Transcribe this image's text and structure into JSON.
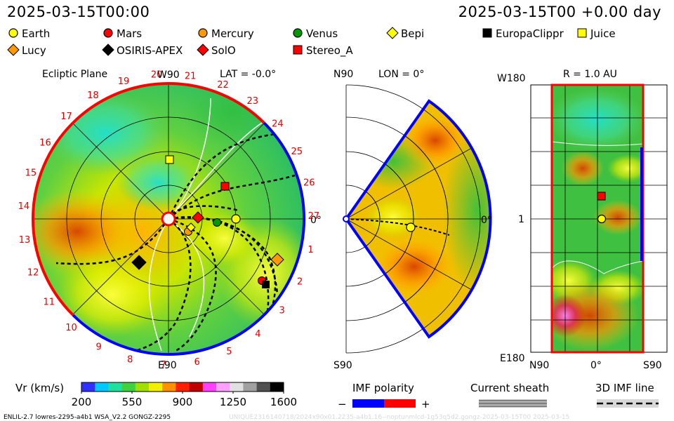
{
  "header": {
    "date_left": "2025-03-15T00:00",
    "date_right": "2025-03-15T00 +0.00 day"
  },
  "legend": [
    {
      "label": "Earth",
      "shape": "circle",
      "color": "#ffff00"
    },
    {
      "label": "Mars",
      "shape": "circle",
      "color": "#ff0000"
    },
    {
      "label": "Mercury",
      "shape": "circle",
      "color": "#ff9900"
    },
    {
      "label": "Venus",
      "shape": "circle",
      "color": "#009900"
    },
    {
      "label": "Bepi",
      "shape": "diamond",
      "color": "#ffff00"
    },
    {
      "label": "EuropaClippr",
      "shape": "square",
      "color": "#000000"
    },
    {
      "label": "Juice",
      "shape": "square",
      "color": "#ffff00"
    },
    {
      "label": "Lucy",
      "shape": "diamond",
      "color": "#ff9900"
    },
    {
      "label": "OSIRIS-APEX",
      "shape": "diamond",
      "color": "#000000"
    },
    {
      "label": "SolO",
      "shape": "diamond",
      "color": "#ff0000"
    },
    {
      "label": "Stereo_A",
      "shape": "square",
      "color": "#ff0000"
    }
  ],
  "ecliptic": {
    "title": "Ecliptic Plane",
    "lat": "LAT = -0.0°",
    "w90": "W90",
    "e90": "E90",
    "zero": "0°",
    "day_labels": [
      "1",
      "2",
      "3",
      "4",
      "5",
      "6",
      "7",
      "8",
      "9",
      "10",
      "11",
      "12",
      "13",
      "14",
      "15",
      "16",
      "17",
      "18",
      "19",
      "20",
      "21",
      "22",
      "23",
      "24",
      "25",
      "26",
      "27"
    ]
  },
  "meridional": {
    "n90": "N90",
    "s90": "S90",
    "lon": "LON = 0°",
    "zero": "0°"
  },
  "radial": {
    "title": "R = 1.0 AU",
    "w180": "W180",
    "e180": "E180",
    "one": "1",
    "n90": "N90",
    "zero": "0°",
    "s90": "S90"
  },
  "colorbar": {
    "title": "Vr (km/s)",
    "ticks": [
      "200",
      "550",
      "900",
      "1250",
      "1600"
    ],
    "colors": [
      "#3030ff",
      "#00c8ff",
      "#20e0a0",
      "#40d040",
      "#a0e000",
      "#f0f000",
      "#ff9000",
      "#ff2000",
      "#c00000",
      "#ff40ff",
      "#ffa0ff",
      "#e0e0e0",
      "#a0a0a0",
      "#505050",
      "#000000"
    ]
  },
  "imf": {
    "title": "IMF polarity",
    "minus": "−",
    "plus": "+",
    "neg_color": "#0000ff",
    "pos_color": "#ff0000"
  },
  "sheath": {
    "title": "Current sheath"
  },
  "imf3d": {
    "title": "3D IMF line"
  },
  "footer": {
    "left": "ENLIL-2.7 lowres-2295-a4b1 WSA_V2.2 GONGZ-2295",
    "right": "UNIQUE2316140718/2024x90x01.2235-a4b1.16--noptunmlcd-1g53q5d2.gongz-2025-03-15T00 2025-03-15"
  }
}
